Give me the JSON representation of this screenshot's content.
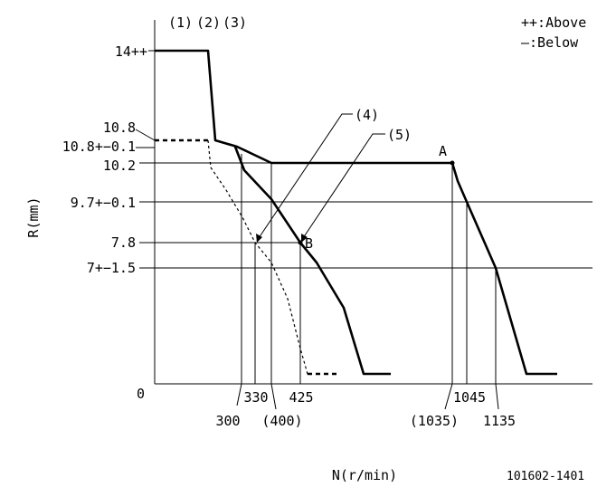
{
  "chart_data": {
    "type": "line",
    "xlabel": "N(r/min)",
    "ylabel": "R(mm)",
    "legend": {
      "above": "++:Above",
      "below": "—:Below"
    },
    "header_labels": [
      "(1)",
      "(2)",
      "(3)"
    ],
    "y_ticks": [
      {
        "label": "14++",
        "value": 14
      },
      {
        "label": "10.8",
        "value": 10.8
      },
      {
        "label": "10.8+−0.1",
        "value": 10.45
      },
      {
        "label": "10.2",
        "value": 10.2
      },
      {
        "label": "9.7+−0.1",
        "value": 9.7
      },
      {
        "label": "7.8",
        "value": 7.8
      },
      {
        "label": "7+−1.5",
        "value": 7.0
      },
      {
        "label": "0",
        "value": 0
      }
    ],
    "x_ticks": [
      {
        "label": "300",
        "value": 300,
        "row": 2
      },
      {
        "label": "330",
        "value": 330,
        "row": 1
      },
      {
        "label": "(400)",
        "value": 400,
        "row": 2
      },
      {
        "label": "425",
        "value": 425,
        "row": 1
      },
      {
        "label": "(1035)",
        "value": 1035,
        "row": 2
      },
      {
        "label": "1045",
        "value": 1045,
        "row": 1
      },
      {
        "label": "1135",
        "value": 1135,
        "row": 2
      }
    ],
    "annotations": [
      {
        "label": "(4)",
        "target": "lower-curve-at-7.8"
      },
      {
        "label": "(5)",
        "target": "point-B"
      },
      {
        "label": "A",
        "x": 1035,
        "y": 10.2
      },
      {
        "label": "B",
        "x": 425,
        "y": 7.8
      }
    ],
    "footer_code": "101602-1401"
  }
}
